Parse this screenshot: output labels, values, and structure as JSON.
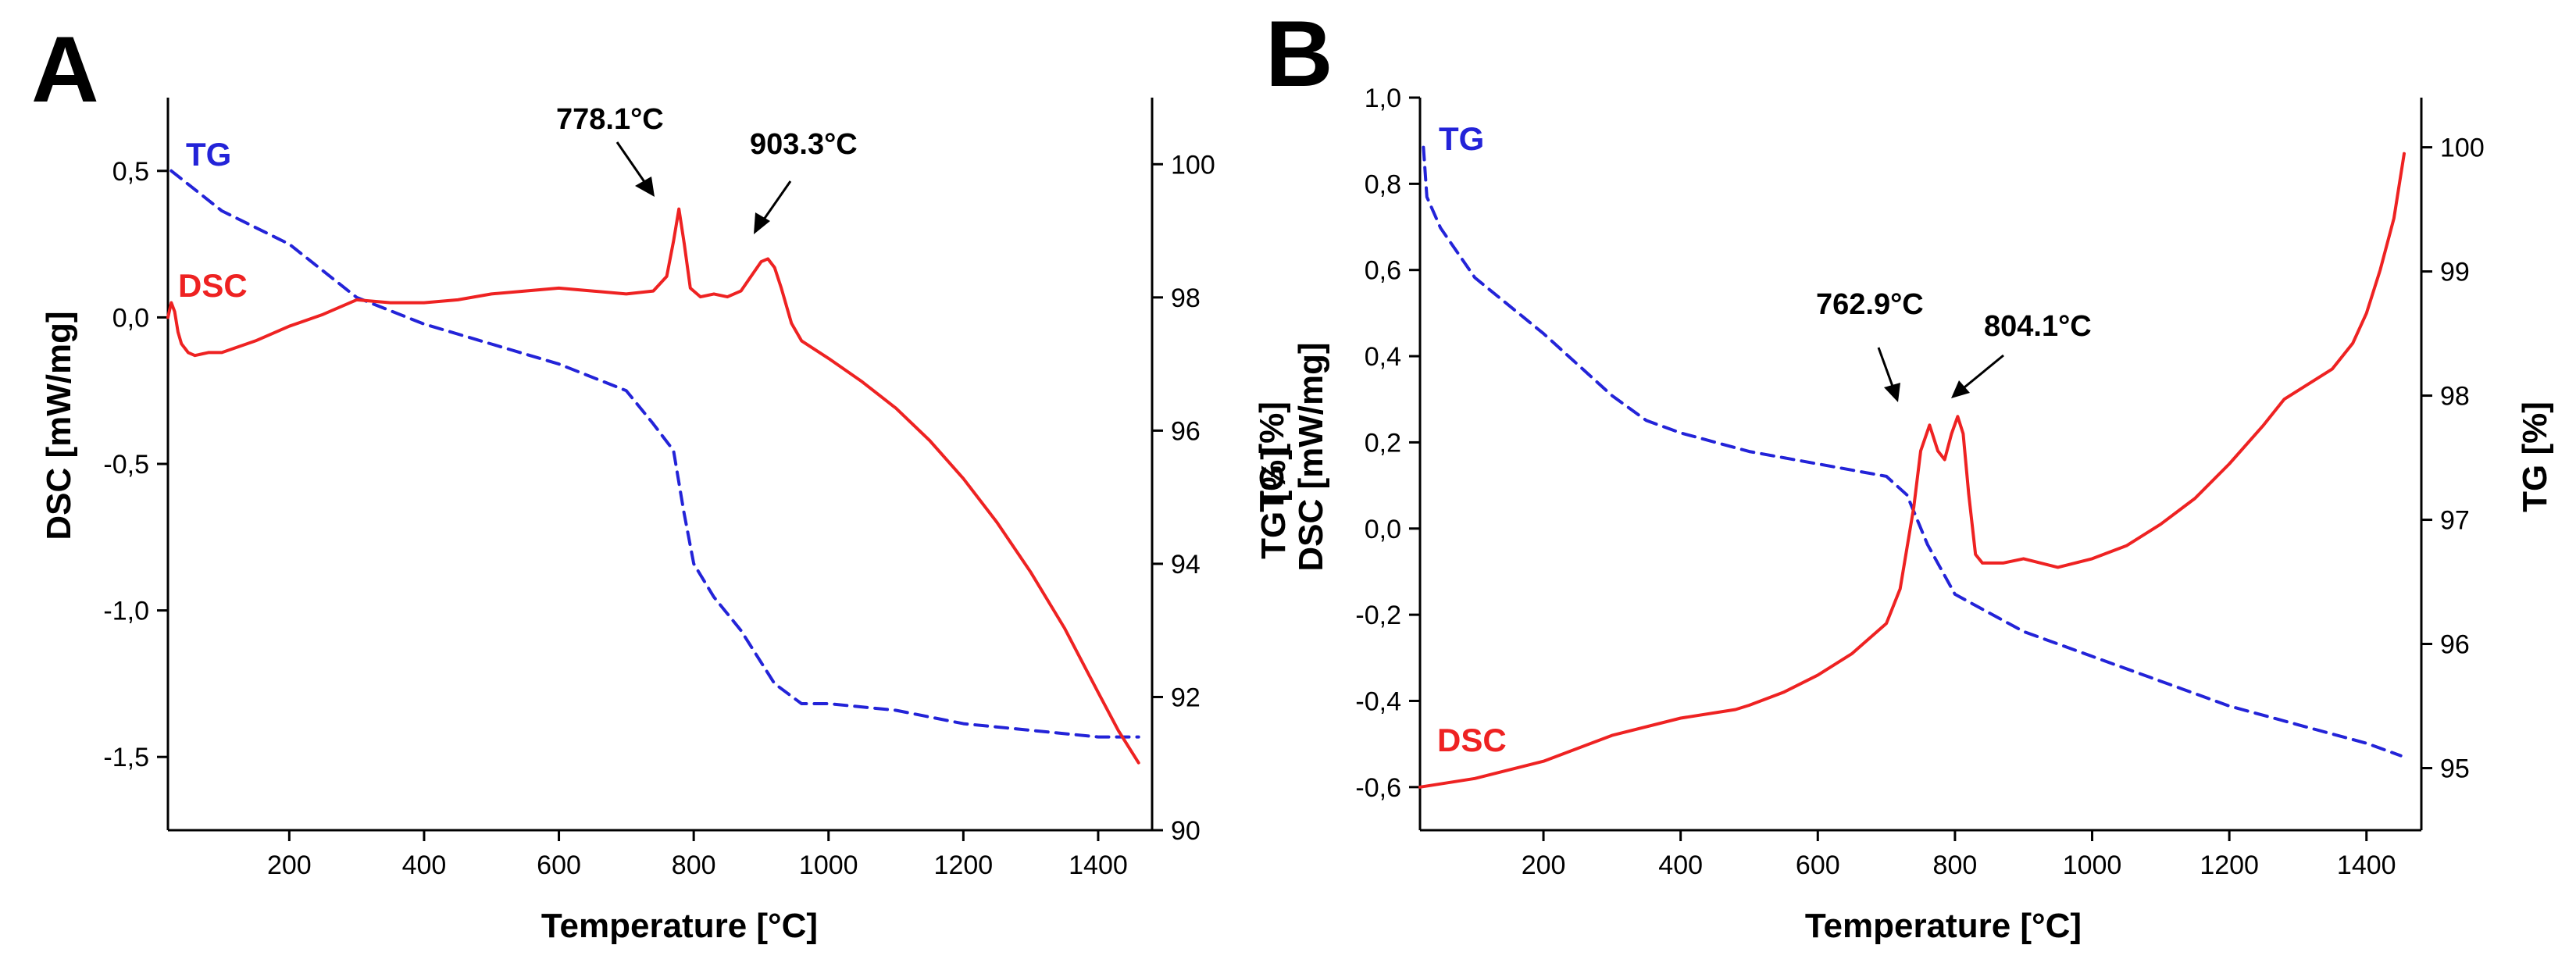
{
  "chart_data": [
    {
      "panel": "A",
      "type": "line",
      "xlabel": "Temperature [°C]",
      "ylabel": "DSC [mW/mg]",
      "y2label": "TG [%]",
      "xlim": [
        20,
        1480
      ],
      "xticks": [
        200,
        400,
        600,
        800,
        1000,
        1200,
        1400
      ],
      "xtick_labels": [
        "200",
        "400",
        "600",
        "800",
        "1000",
        "1200",
        "1400"
      ],
      "ylim": [
        -1.75,
        0.75
      ],
      "yticks": [
        -1.5,
        -1.0,
        -0.5,
        0.0,
        0.5
      ],
      "ytick_labels": [
        "-1,5",
        "-1,0",
        "-0,5",
        "0,0",
        "0,5"
      ],
      "y2lim": [
        90,
        101
      ],
      "y2ticks": [
        90,
        92,
        94,
        96,
        98,
        100
      ],
      "y2tick_labels": [
        "90",
        "92",
        "94",
        "96",
        "98",
        "100"
      ],
      "series": [
        {
          "name": "TG",
          "axis": "right",
          "color": "#2323d8",
          "style": "dashed",
          "x": [
            25,
            100,
            200,
            300,
            400,
            500,
            600,
            700,
            740,
            770,
            785,
            800,
            830,
            870,
            920,
            960,
            1000,
            1100,
            1200,
            1300,
            1400,
            1460
          ],
          "y": [
            99.9,
            99.3,
            98.8,
            98.0,
            97.6,
            97.3,
            97.0,
            96.6,
            96.1,
            95.7,
            94.8,
            94.0,
            93.5,
            93.0,
            92.2,
            91.9,
            91.9,
            91.8,
            91.6,
            91.5,
            91.4,
            91.4
          ]
        },
        {
          "name": "DSC",
          "axis": "left",
          "color": "#ee2222",
          "style": "solid",
          "x": [
            20,
            25,
            30,
            35,
            40,
            50,
            60,
            80,
            100,
            150,
            200,
            250,
            300,
            350,
            400,
            450,
            500,
            550,
            600,
            650,
            700,
            740,
            760,
            770,
            778,
            786,
            795,
            810,
            830,
            850,
            870,
            885,
            900,
            910,
            920,
            930,
            945,
            960,
            980,
            1000,
            1050,
            1100,
            1150,
            1200,
            1250,
            1300,
            1350,
            1400,
            1430,
            1460
          ],
          "y": [
            0.0,
            0.05,
            0.02,
            -0.05,
            -0.09,
            -0.12,
            -0.13,
            -0.12,
            -0.12,
            -0.08,
            -0.03,
            0.01,
            0.06,
            0.05,
            0.05,
            0.06,
            0.08,
            0.09,
            0.1,
            0.09,
            0.08,
            0.09,
            0.14,
            0.26,
            0.37,
            0.25,
            0.1,
            0.07,
            0.08,
            0.07,
            0.09,
            0.14,
            0.19,
            0.2,
            0.17,
            0.1,
            -0.02,
            -0.08,
            -0.11,
            -0.14,
            -0.22,
            -0.31,
            -0.42,
            -0.55,
            -0.7,
            -0.87,
            -1.06,
            -1.28,
            -1.41,
            -1.52
          ]
        }
      ],
      "series_labels": [
        "TG",
        "DSC"
      ],
      "annotations": [
        {
          "text": "778.1°C",
          "x": 778,
          "y": 0.37
        },
        {
          "text": "903.3°C",
          "x": 903,
          "y": 0.2
        }
      ]
    },
    {
      "panel": "B",
      "type": "line",
      "xlabel": "Temperature [°C]",
      "ylabel": "DSC [mW/mg]",
      "y2label": "TG [%]",
      "y2label_inner": "TG [%]",
      "xlim": [
        20,
        1480
      ],
      "xticks": [
        200,
        400,
        600,
        800,
        1000,
        1200,
        1400
      ],
      "xtick_labels": [
        "200",
        "400",
        "600",
        "800",
        "1000",
        "1200",
        "1400"
      ],
      "ylim": [
        -0.7,
        1.0
      ],
      "yticks": [
        -0.6,
        -0.4,
        -0.2,
        0.0,
        0.2,
        0.4,
        0.6,
        0.8,
        1.0
      ],
      "ytick_labels": [
        "-0,6",
        "-0,4",
        "-0,2",
        "0,0",
        "0,2",
        "0,4",
        "0,6",
        "0,8",
        "1,0"
      ],
      "y2lim": [
        94.5,
        100.4
      ],
      "y2ticks": [
        95,
        96,
        97,
        98,
        99,
        100
      ],
      "y2tick_labels": [
        "95",
        "96",
        "97",
        "98",
        "99",
        "100"
      ],
      "series": [
        {
          "name": "TG",
          "axis": "right",
          "color": "#2323d8",
          "style": "dashed",
          "x": [
            25,
            30,
            50,
            100,
            200,
            300,
            350,
            400,
            500,
            600,
            700,
            730,
            760,
            800,
            850,
            900,
            1000,
            1100,
            1200,
            1300,
            1400,
            1450
          ],
          "y": [
            100.0,
            99.6,
            99.35,
            98.95,
            98.5,
            98.0,
            97.8,
            97.7,
            97.55,
            97.45,
            97.35,
            97.2,
            96.8,
            96.4,
            96.25,
            96.1,
            95.9,
            95.7,
            95.5,
            95.35,
            95.2,
            95.1
          ],
          "label_inner": "TG"
        },
        {
          "name": "DSC",
          "axis": "left",
          "color": "#ee2222",
          "style": "solid",
          "x": [
            20,
            100,
            200,
            300,
            400,
            480,
            500,
            550,
            600,
            650,
            700,
            720,
            740,
            750,
            763,
            775,
            785,
            795,
            804,
            812,
            820,
            830,
            840,
            870,
            900,
            950,
            1000,
            1050,
            1100,
            1150,
            1200,
            1250,
            1280,
            1300,
            1350,
            1380,
            1400,
            1420,
            1440,
            1455
          ],
          "y": [
            -0.6,
            -0.58,
            -0.54,
            -0.48,
            -0.44,
            -0.42,
            -0.41,
            -0.38,
            -0.34,
            -0.29,
            -0.22,
            -0.14,
            0.05,
            0.18,
            0.24,
            0.18,
            0.16,
            0.22,
            0.26,
            0.22,
            0.08,
            -0.06,
            -0.08,
            -0.08,
            -0.07,
            -0.09,
            -0.07,
            -0.04,
            0.01,
            0.07,
            0.15,
            0.24,
            0.3,
            0.32,
            0.37,
            0.43,
            0.5,
            0.6,
            0.72,
            0.87
          ]
        }
      ],
      "series_labels": [
        "TG",
        "DSC"
      ],
      "annotations": [
        {
          "text": "762.9°C",
          "x": 763,
          "y": 0.24
        },
        {
          "text": "804.1°C",
          "x": 804,
          "y": 0.26
        }
      ]
    }
  ]
}
